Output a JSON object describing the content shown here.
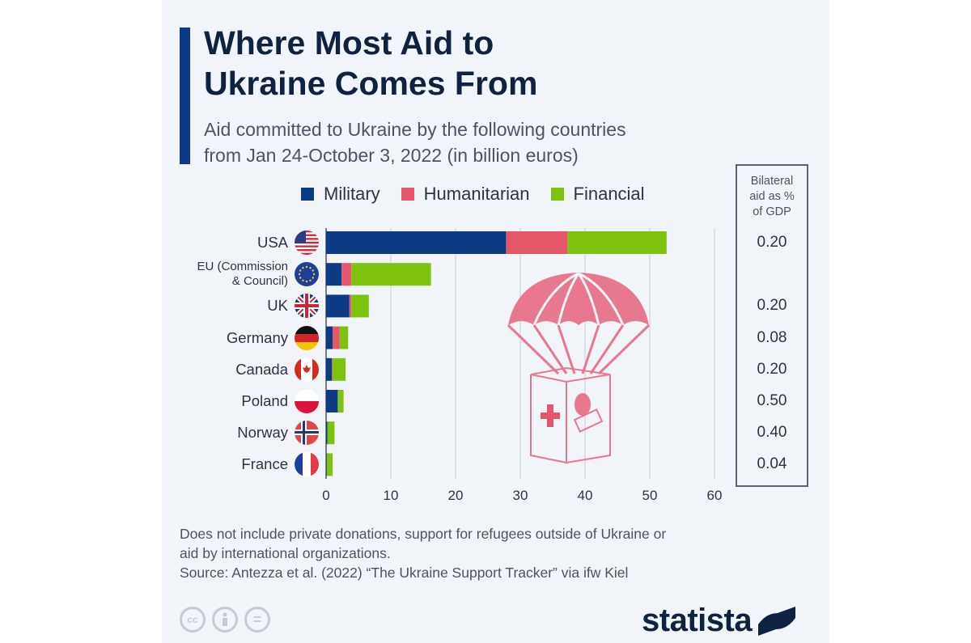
{
  "title_line1": "Where Most Aid to",
  "title_line2": "Ukraine Comes From",
  "subtitle_line1": "Aid committed to Ukraine by the following countries",
  "subtitle_line2": "from Jan 24-October 3, 2022 (in billion euros)",
  "gdp_column": {
    "header_line1": "Bilateral",
    "header_line2": "aid as %",
    "header_line3": "of GDP",
    "values": [
      "0.20",
      "",
      "0.20",
      "0.08",
      "0.20",
      "0.50",
      "0.40",
      "0.04"
    ]
  },
  "footnote_line1": "Does not include private donations, support for refugees outside of Ukraine or",
  "footnote_line2": "aid by international organizations.",
  "source": "Source: Antezza et al. (2022) “The Ukraine Support Tracker” via ifw Kiel",
  "license_icons": [
    "cc-icon",
    "attribution-icon",
    "no-derivatives-icon"
  ],
  "cc_label": "cc",
  "cc_eq": "=",
  "brand": "statista",
  "colors": {
    "military": "#0a3b84",
    "humanitarian": "#e5566b",
    "financial": "#7dc30d",
    "illustration": "#e87890"
  },
  "chart_data": {
    "type": "bar",
    "orientation": "horizontal",
    "stacked": true,
    "title": "Where Most Aid to Ukraine Comes From",
    "subtitle": "Aid committed to Ukraine by the following countries from Jan 24-October 3, 2022 (in billion euros)",
    "xlabel": "",
    "ylabel": "",
    "xlim": [
      0,
      60
    ],
    "xticks": [
      0,
      10,
      20,
      30,
      40,
      50,
      60
    ],
    "grid": true,
    "legend_position": "top",
    "categories": [
      "USA",
      "EU (Commission & Council)",
      "UK",
      "Germany",
      "Canada",
      "Poland",
      "Norway",
      "France"
    ],
    "category_lines": [
      [
        "USA"
      ],
      [
        "EU (Commission",
        "& Council)"
      ],
      [
        "UK"
      ],
      [
        "Germany"
      ],
      [
        "Canada"
      ],
      [
        "Poland"
      ],
      [
        "Norway"
      ],
      [
        "France"
      ]
    ],
    "flags": [
      "usa-flag-icon",
      "eu-flag-icon",
      "uk-flag-icon",
      "germany-flag-icon",
      "canada-flag-icon",
      "poland-flag-icon",
      "norway-flag-icon",
      "france-flag-icon"
    ],
    "series": [
      {
        "name": "Military",
        "values": [
          27.8,
          2.4,
          3.6,
          1.0,
          0.9,
          1.8,
          0.2,
          0.1
        ]
      },
      {
        "name": "Humanitarian",
        "values": [
          9.5,
          1.5,
          0.3,
          1.1,
          0.1,
          0.0,
          0.0,
          0.0
        ]
      },
      {
        "name": "Financial",
        "values": [
          15.3,
          12.3,
          2.7,
          1.3,
          2.0,
          0.9,
          1.1,
          0.9
        ]
      }
    ],
    "side_table": {
      "header": "Bilateral aid as % of GDP",
      "values": [
        0.2,
        null,
        0.2,
        0.08,
        0.2,
        0.5,
        0.4,
        0.04
      ]
    }
  }
}
